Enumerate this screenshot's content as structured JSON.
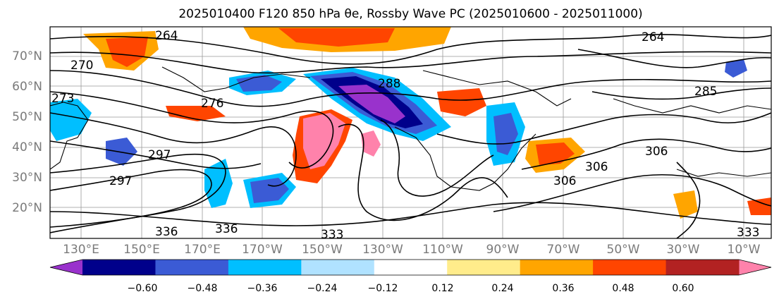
{
  "title": "2025010400 F120 850 hPa θe, Rossby Wave PC (2025010600 - 2025011000)",
  "map": {
    "lat_labels": [
      "70°N",
      "60°N",
      "50°N",
      "40°N",
      "30°N",
      "20°N"
    ],
    "lon_labels": [
      "130°E",
      "150°E",
      "170°E",
      "170°W",
      "150°W",
      "130°W",
      "110°W",
      "90°W",
      "70°W",
      "50°W",
      "30°W",
      "10°W"
    ],
    "contour_labels": [
      "264",
      "270",
      "273",
      "276",
      "288",
      "285",
      "264",
      "297",
      "297",
      "306",
      "306",
      "306",
      "333",
      "336",
      "336",
      "333"
    ]
  },
  "colorbar": {
    "ticks": [
      "−0.60",
      "−0.48",
      "−0.36",
      "−0.24",
      "−0.12",
      "0.12",
      "0.24",
      "0.36",
      "0.48",
      "0.60"
    ],
    "colors": [
      "#9932cc",
      "#00008b",
      "#3b5bd5",
      "#00bfff",
      "#b0e2ff",
      "#ffffff",
      "#ffec8b",
      "#ffa500",
      "#ff4500",
      "#b22222",
      "#ff82ab"
    ]
  }
}
